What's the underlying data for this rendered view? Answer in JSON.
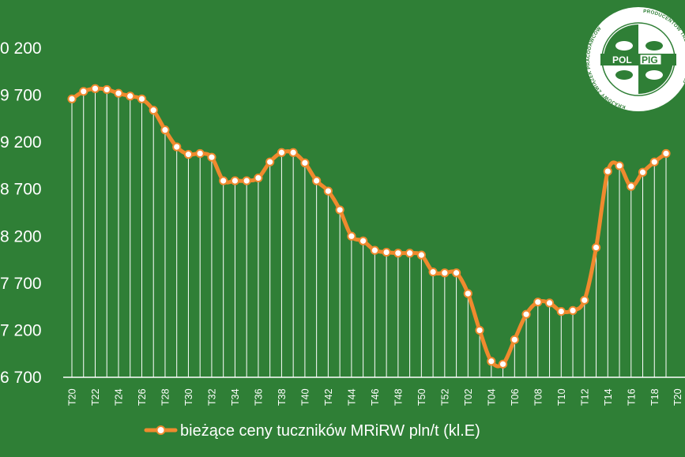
{
  "chart_data": {
    "type": "line",
    "yticks": [
      "0 200",
      "9 700",
      "9 200",
      "8 700",
      "8 200",
      "7 700",
      "7 200",
      "6 700"
    ],
    "ylim": [
      6700,
      10200
    ],
    "grid": false,
    "legend_position": "bottom",
    "x_tick_labels": [
      "T20",
      "T22",
      "T24",
      "T26",
      "T28",
      "T30",
      "T32",
      "T34",
      "T36",
      "T38",
      "T40",
      "T42",
      "T44",
      "T46",
      "T48",
      "T50",
      "T52",
      "T02",
      "T04",
      "T06",
      "T08",
      "T10",
      "T12",
      "T14",
      "T16",
      "T18",
      "T20"
    ],
    "series": [
      {
        "name": "bieżące ceny tuczników MRiRW pln/t (kl.E)",
        "color": "#f08a2e",
        "values": [
          9660,
          9740,
          9770,
          9760,
          9720,
          9690,
          9660,
          9540,
          9330,
          9150,
          9070,
          9080,
          9040,
          8790,
          8790,
          8790,
          8820,
          8990,
          9090,
          9090,
          8980,
          8790,
          8680,
          8480,
          8200,
          8150,
          8050,
          8030,
          8020,
          8020,
          8000,
          7820,
          7810,
          7810,
          7590,
          7200,
          6870,
          6840,
          7100,
          7370,
          7500,
          7490,
          7400,
          7410,
          7520,
          8080,
          8890,
          8950,
          8730,
          8880,
          8990,
          9080
        ]
      }
    ]
  },
  "logo": {
    "arc_left": "KRAJOWY ZWIĄZEK PRACODAWCÓW",
    "arc_right": "PRODUCENTÓW TRZODY CHLEWNEJ",
    "mid_left": "POL",
    "mid_right": "PIG"
  }
}
